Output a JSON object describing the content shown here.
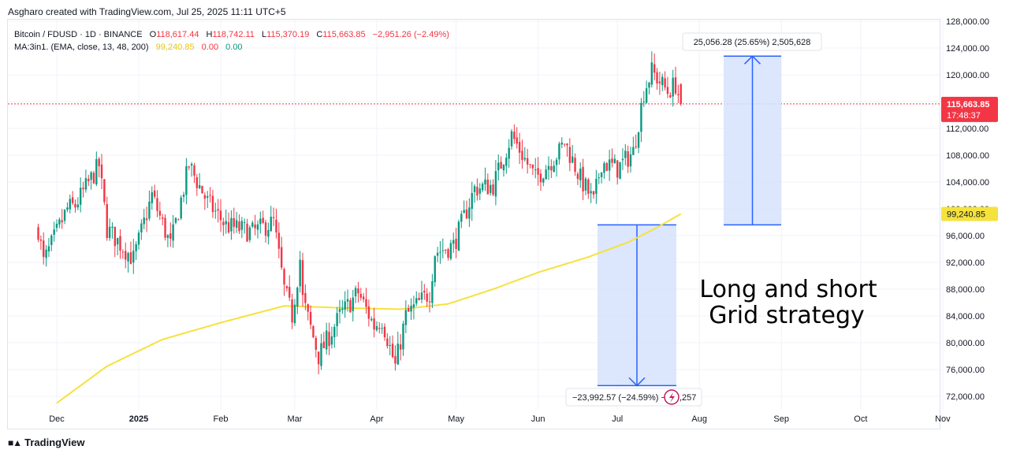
{
  "header": {
    "attribution": "Asgharo created with TradingView.com, Jul 25, 2025 11:11 UTC+5"
  },
  "legend": {
    "symbol": "Bitcoin / FDUSD · 1D · BINANCE",
    "open_label": "O",
    "open": "118,617.44",
    "high_label": "H",
    "high": "118,742.11",
    "low_label": "L",
    "low": "115,370.19",
    "close_label": "C",
    "close": "115,663.85",
    "change": "−2,951.26 (−2.49%)",
    "ma_label": "MA:3in1. (EMA, close, 13, 48, 200)",
    "ma_value": "99,240.85",
    "ma_v2": "0.00",
    "ma_v3": "0.00"
  },
  "footer": {
    "brand": "TradingView"
  },
  "colors": {
    "up": "#089981",
    "down": "#f23645",
    "ema": "#f5e23d",
    "measure_fill": "#d6e2fc",
    "measure_line": "#2962ff",
    "grid": "#f0f3fa",
    "axis_text": "#131722"
  },
  "chart_data": {
    "type": "candlestick",
    "title": "Bitcoin / FDUSD · 1D · BINANCE",
    "ylim": [
      70000,
      128000
    ],
    "y_ticks": [
      "72,000.00",
      "76,000.00",
      "80,000.00",
      "84,000.00",
      "88,000.00",
      "92,000.00",
      "96,000.00",
      "100,000.00",
      "104,000.00",
      "108,000.00",
      "112,000.00",
      "116,000.00",
      "120,000.00",
      "124,000.00",
      "128,000.00"
    ],
    "x_ticks": [
      "Dec",
      "2025",
      "Feb",
      "Mar",
      "Apr",
      "May",
      "Jun",
      "Jul",
      "Aug",
      "Sep",
      "Oct",
      "Nov"
    ],
    "grid": true,
    "last_price": {
      "value": 115663.85,
      "label": "115,663.85",
      "countdown": "17:48:37"
    },
    "ema_label": {
      "value": 99240.85,
      "label": "99,240.85"
    },
    "price_anchors": [
      [
        "2024-11-24",
        97000
      ],
      [
        "2024-11-26",
        92000
      ],
      [
        "2024-12-05",
        100000
      ],
      [
        "2024-12-08",
        100500
      ],
      [
        "2024-12-17",
        106500
      ],
      [
        "2024-12-20",
        97000
      ],
      [
        "2024-12-30",
        92500
      ],
      [
        "2025-01-06",
        102000
      ],
      [
        "2025-01-13",
        94500
      ],
      [
        "2025-01-20",
        106500
      ],
      [
        "2025-01-27",
        101000
      ],
      [
        "2025-02-03",
        97500
      ],
      [
        "2025-02-13",
        96500
      ],
      [
        "2025-02-21",
        98000
      ],
      [
        "2025-02-25",
        88000
      ],
      [
        "2025-02-28",
        84000
      ],
      [
        "2025-03-03",
        92500
      ],
      [
        "2025-03-04",
        86500
      ],
      [
        "2025-03-10",
        78000
      ],
      [
        "2025-03-18",
        84000
      ],
      [
        "2025-03-25",
        87500
      ],
      [
        "2025-03-31",
        82500
      ],
      [
        "2025-04-03",
        83500
      ],
      [
        "2025-04-08",
        76500
      ],
      [
        "2025-04-12",
        84000
      ],
      [
        "2025-04-21",
        87500
      ],
      [
        "2025-04-23",
        93500
      ],
      [
        "2025-04-30",
        94500
      ],
      [
        "2025-05-08",
        103000
      ],
      [
        "2025-05-15",
        103500
      ],
      [
        "2025-05-22",
        111000
      ],
      [
        "2025-05-31",
        104500
      ],
      [
        "2025-06-09",
        108500
      ],
      [
        "2025-06-11",
        110000
      ],
      [
        "2025-06-17",
        104500
      ],
      [
        "2025-06-22",
        101000
      ],
      [
        "2025-06-25",
        107000
      ],
      [
        "2025-07-01",
        106000
      ],
      [
        "2025-07-07",
        108500
      ],
      [
        "2025-07-11",
        117500
      ],
      [
        "2025-07-14",
        120500
      ],
      [
        "2025-07-20",
        117500
      ],
      [
        "2025-07-23",
        118600
      ],
      [
        "2025-07-25",
        115663.85
      ]
    ],
    "ema_anchors": [
      [
        "2024-12-01",
        71000
      ],
      [
        "2024-12-20",
        76500
      ],
      [
        "2025-01-10",
        80500
      ],
      [
        "2025-02-01",
        83000
      ],
      [
        "2025-02-25",
        85500
      ],
      [
        "2025-03-20",
        85200
      ],
      [
        "2025-04-10",
        85000
      ],
      [
        "2025-04-28",
        85800
      ],
      [
        "2025-05-15",
        88000
      ],
      [
        "2025-06-01",
        90500
      ],
      [
        "2025-06-20",
        92800
      ],
      [
        "2025-07-05",
        95000
      ],
      [
        "2025-07-15",
        97000
      ],
      [
        "2025-07-25",
        99240.85
      ]
    ],
    "long_measure": {
      "from": 97600,
      "to": 122800,
      "label": "25,056.28 (25.65%) 2,505,628"
    },
    "short_measure": {
      "from": 97600,
      "to": 73600,
      "label": "−23,992.57 (−24.59%) −2",
      "label_tail": ",257"
    }
  },
  "annotation": {
    "line1": "Long and short",
    "line2": "Grid strategy"
  }
}
